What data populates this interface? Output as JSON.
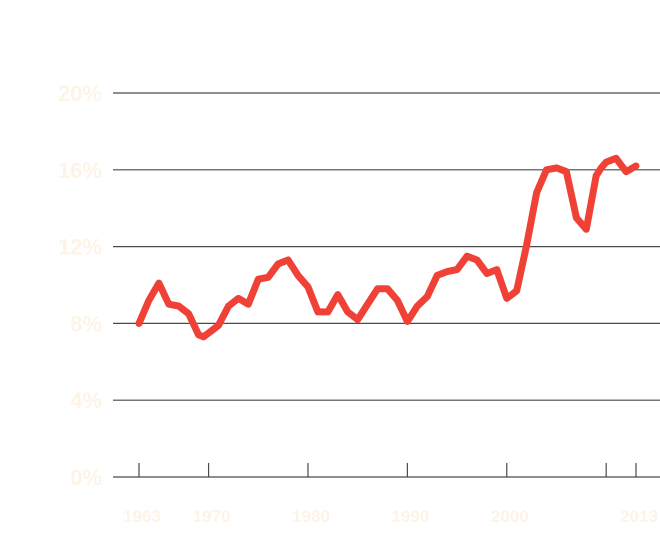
{
  "chart_data": {
    "type": "line",
    "title": "",
    "xlabel": "",
    "ylabel": "",
    "xlim": [
      1963,
      2013
    ],
    "ylim": [
      0,
      20
    ],
    "y_ticks": [
      0,
      4,
      8,
      12,
      16,
      20
    ],
    "y_tick_labels": [
      "0%",
      "4%",
      "8%",
      "12%",
      "16%",
      "20%"
    ],
    "x_ticks": [
      1963,
      1970,
      1980,
      1990,
      2000,
      2010,
      2013
    ],
    "x_tick_labels": [
      "1963",
      "1970",
      "1980",
      "1990",
      "2000",
      "",
      "2013"
    ],
    "grid": "horizontal",
    "legend": "none",
    "colors": {
      "series": "#ef4136",
      "grid": "#4a4a4a",
      "labels": "#fdf3e6"
    },
    "series": [
      {
        "x": [
          1963,
          1964,
          1965,
          1966,
          1967,
          1968,
          1969,
          1969.5,
          1970,
          1971,
          1972,
          1973,
          1974,
          1975,
          1976,
          1977,
          1978,
          1979,
          1980,
          1981,
          1982,
          1983,
          1984,
          1985,
          1986,
          1987,
          1988,
          1989,
          1990,
          1991,
          1992,
          1993,
          1994,
          1995,
          1996,
          1997,
          1998,
          1999,
          2000,
          2001,
          2002,
          2003,
          2004,
          2005,
          2006,
          2007,
          2008,
          2009,
          2009.5,
          2010,
          2011,
          2012,
          2013
        ],
        "values": [
          8.0,
          9.2,
          10.1,
          9.0,
          8.9,
          8.5,
          7.4,
          7.3,
          7.5,
          7.9,
          8.9,
          9.3,
          9.0,
          10.3,
          10.4,
          11.1,
          11.3,
          10.5,
          9.9,
          8.6,
          8.6,
          9.5,
          8.6,
          8.2,
          9.0,
          9.8,
          9.8,
          9.2,
          8.1,
          8.9,
          9.4,
          10.5,
          10.7,
          10.8,
          11.5,
          11.3,
          10.6,
          10.8,
          9.3,
          9.7,
          12.1,
          14.8,
          16.0,
          16.1,
          15.9,
          13.5,
          12.9,
          15.7,
          16.1,
          16.4,
          16.6,
          15.9,
          16.2
        ]
      }
    ]
  }
}
